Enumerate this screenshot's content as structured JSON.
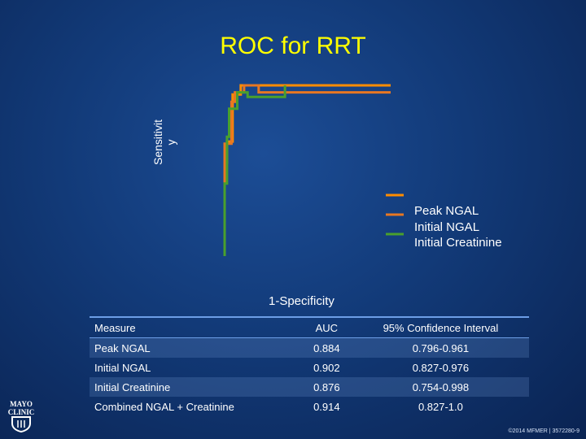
{
  "chart_data": {
    "type": "line",
    "title": "ROC for RRT",
    "ylabel_line1": "Sensitivit",
    "ylabel_line2": "y",
    "xlabel": "1-Specificity",
    "xlim": [
      0,
      1
    ],
    "ylim": [
      0,
      1
    ],
    "series": [
      {
        "name": "Peak NGAL",
        "color": "#ff8c00",
        "x": [
          0.0,
          0.0,
          0.014,
          0.014,
          0.048,
          0.048,
          0.097,
          0.097,
          1.0
        ],
        "y": [
          0.0,
          0.548,
          0.548,
          0.671,
          0.671,
          0.946,
          0.946,
          1.0,
          1.0
        ]
      },
      {
        "name": "Initial NGAL",
        "color": "#e87722",
        "x": [
          0.0,
          0.0,
          0.041,
          0.041,
          0.062,
          0.062,
          0.117,
          0.117,
          0.205,
          0.205,
          1.0
        ],
        "y": [
          0.0,
          0.658,
          0.658,
          0.904,
          0.904,
          0.959,
          0.959,
          1.0,
          1.0,
          0.959,
          0.959
        ]
      },
      {
        "name": "Initial Creatinine",
        "color": "#4aa02c",
        "x": [
          0.0,
          0.0,
          0.014,
          0.014,
          0.027,
          0.027,
          0.076,
          0.076,
          0.138,
          0.138,
          0.363,
          0.363
        ],
        "y": [
          0.0,
          0.425,
          0.425,
          0.699,
          0.699,
          0.863,
          0.863,
          0.959,
          0.959,
          0.932,
          0.932,
          1.0
        ]
      }
    ],
    "legend_position": "right"
  },
  "table": {
    "headers": [
      "Measure",
      "AUC",
      "95% Confidence Interval"
    ],
    "rows": [
      [
        "Peak NGAL",
        "0.884",
        "0.796-0.961"
      ],
      [
        "Initial NGAL",
        "0.902",
        "0.827-0.976"
      ],
      [
        "Initial Creatinine",
        "0.876",
        "0.754-0.998"
      ],
      [
        "Combined NGAL + Creatinine",
        "0.914",
        "0.827-1.0"
      ]
    ]
  },
  "logo": {
    "line1": "MAYO",
    "line2": "CLINIC"
  },
  "copyright": "©2014 MFMER | 3572280-9",
  "colors": {
    "title": "#ffff00",
    "background": "#123a78",
    "table_rule": "#6d9ee6"
  }
}
